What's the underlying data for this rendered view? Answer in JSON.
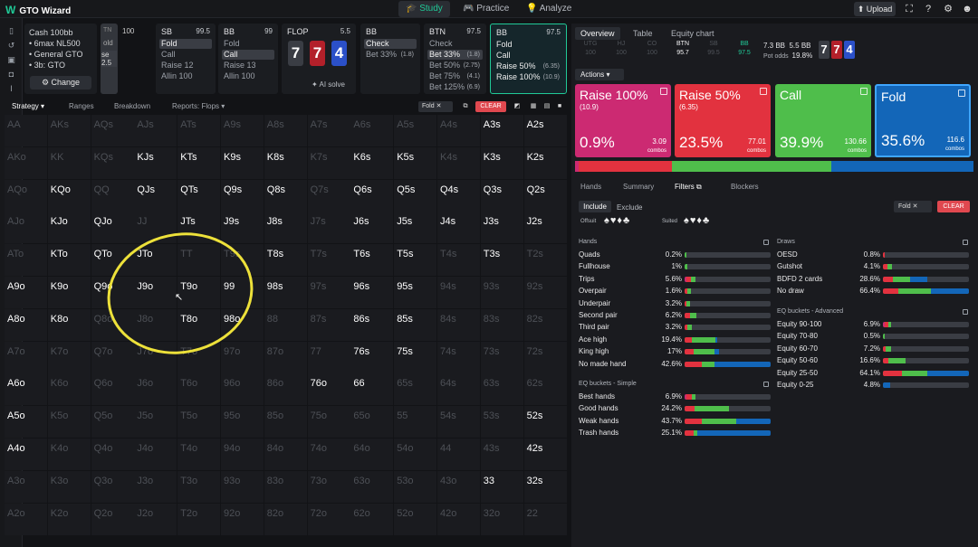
{
  "topbar": {
    "logo": "GTO Wizard",
    "nav": [
      "Study",
      "Practice",
      "Analyze"
    ],
    "upload": "Upload"
  },
  "config": {
    "line1": "Cash 100bb",
    "line2": "• 6max NL500",
    "line3": "• General GTO",
    "line4": "• 3b: GTO",
    "change": "Change"
  },
  "positions": [
    {
      "name": "SB",
      "stack": "99.5",
      "actions": [
        {
          "label": "Fold",
          "sel": true
        },
        {
          "label": "Call"
        },
        {
          "label": "Raise 12"
        },
        {
          "label": "Allin 100"
        }
      ]
    },
    {
      "name": "BB",
      "stack": "99",
      "actions": [
        {
          "label": "Fold"
        },
        {
          "label": "Call",
          "sel": true
        },
        {
          "label": "Raise 13"
        },
        {
          "label": "Allin 100"
        }
      ]
    },
    {
      "name": "FLOP",
      "stack": "5.5",
      "ai": "AI solve"
    },
    {
      "name": "BB",
      "stack": "",
      "actions": [
        {
          "label": "Check",
          "sel": true
        },
        {
          "label": "Bet 33%",
          "size": "(1.8)"
        }
      ]
    },
    {
      "name": "BTN",
      "stack": "97.5",
      "actions": [
        {
          "label": "Check"
        },
        {
          "label": "Bet 33%",
          "size": "(1.8)",
          "sel": true
        },
        {
          "label": "Bet 50%",
          "size": "(2.75)"
        },
        {
          "label": "Bet 75%",
          "size": "(4.1)"
        },
        {
          "label": "Bet 125%",
          "size": "(6.9)"
        }
      ]
    },
    {
      "name": "BB",
      "stack": "97.5",
      "actions": [
        {
          "label": "Fold"
        },
        {
          "label": "Call"
        },
        {
          "label": "Raise 50%",
          "size": "(6.35)"
        },
        {
          "label": "Raise 100%",
          "size": "(10.9)"
        }
      ]
    }
  ],
  "hidden_panel": {
    "h1": "TN",
    "h2": "100",
    "a1": "old",
    "a2": "se 2.5"
  },
  "board": {
    "cards": [
      {
        "rank": "7",
        "color": "#3a3d44"
      },
      {
        "rank": "7",
        "color": "#b3202a"
      },
      {
        "rank": "4",
        "color": "#2b50c8"
      }
    ]
  },
  "grid_tabs": {
    "strategy": "Strategy",
    "ranges": "Ranges",
    "breakdown": "Breakdown",
    "reports": "Reports: Flops",
    "fold_chip": "Fold",
    "clear": "CLEAR"
  },
  "hand_grid": {
    "ranks": [
      "A",
      "K",
      "Q",
      "J",
      "T",
      "9",
      "8",
      "7",
      "6",
      "5",
      "4",
      "3",
      "2"
    ],
    "active_cells": {
      "AA": 0,
      "KK": 0
    },
    "bars": {
      "A3s": 0.2,
      "A2s": 0.2,
      "K3s": 0.45,
      "K2s": 0.6,
      "Q3s": 0.85,
      "Q2s": 0.95,
      "J3s": 0.9,
      "J2s": 0.95,
      "T3s": 0.3,
      "QJo": 0.65,
      "KTo": 0.3,
      "QTo": 0.3,
      "JTo": 0.75,
      "T9s": 0.1,
      "T8s": 0.1,
      "K9o": 0.6,
      "Q9o": 0.6,
      "J9o": 0.6,
      "T9o": 0.75,
      "99": 0.1,
      "K8o": 0.35,
      "Q8o": 0.1,
      "T8o": 0.3,
      "98o": 0.3,
      "Q8s": 0.15,
      "K8s": 0.2,
      "K9s": 0.05,
      "Q9s": 0.05,
      "QTs": 0.1,
      "Q6s": 0.15,
      "Q5s": 0.15,
      "T6s": 0.2,
      "T5s": 0.45,
      "96s": 0.1,
      "95s": 0.1,
      "86s": 0.1,
      "85s": 0.3,
      "Q4s": 0.05,
      "52s": 0.95,
      "32s": 0.2,
      "K5s": 0.05,
      "K6s": 0.05
    },
    "active_labels": [
      "KJs",
      "KTs",
      "K9s",
      "K8s",
      "K6s",
      "K5s",
      "A3s",
      "A2s",
      "KQo",
      "QJs",
      "QTs",
      "Q9s",
      "Q8s",
      "Q6s",
      "Q5s",
      "Q4s",
      "K3s",
      "K2s",
      "Q3s",
      "Q2s",
      "KJo",
      "QJo",
      "JTs",
      "J9s",
      "J8s",
      "J6s",
      "J5s",
      "J4s",
      "J3s",
      "J2s",
      "KTo",
      "QTo",
      "JTo",
      "T8s",
      "T6s",
      "T5s",
      "T3s",
      "A9o",
      "K9o",
      "Q9o",
      "J9o",
      "T9o",
      "99",
      "98s",
      "96s",
      "95s",
      "A8o",
      "K8o",
      "T8o",
      "98o",
      "86s",
      "85s",
      "76s",
      "75s",
      "A6o",
      "76o",
      "66",
      "A5o",
      "52s",
      "A4o",
      "42s",
      "33",
      "32s"
    ]
  },
  "right_panel": {
    "tabs": [
      "Overview",
      "Table",
      "Equity chart"
    ],
    "mini_positions": [
      {
        "name": "UTG",
        "stack": "100",
        "state": "dim"
      },
      {
        "name": "HJ",
        "stack": "100",
        "state": "dim"
      },
      {
        "name": "CO",
        "stack": "100",
        "state": "dim"
      },
      {
        "name": "BTN",
        "stack": "95.7",
        "state": "on"
      },
      {
        "name": "SB",
        "stack": "99.5",
        "state": "dim"
      },
      {
        "name": "BB",
        "stack": "97.5",
        "state": "bb"
      }
    ],
    "pot": "7.3 BB",
    "bet": "5.5 BB",
    "pot_odds_label": "Pot odds",
    "pot_odds": "19.8%",
    "actions_dd": "Actions",
    "actions": [
      {
        "title": "Raise 100%",
        "size": "(10.9)",
        "pct": "0.9%",
        "combos": "3.09",
        "color": "#cc2a72"
      },
      {
        "title": "Raise 50%",
        "size": "(6.35)",
        "pct": "23.5%",
        "combos": "77.01",
        "color": "#e2323f"
      },
      {
        "title": "Call",
        "size": "",
        "pct": "39.9%",
        "combos": "130.66",
        "color": "#4fbe4b"
      },
      {
        "title": "Fold",
        "size": "",
        "pct": "35.6%",
        "combos": "116.6",
        "color": "#1366b8"
      }
    ],
    "combos_label": "combos",
    "subtabs": [
      "Hands",
      "Summary",
      "Filters",
      "Blockers"
    ],
    "include": "Include",
    "exclude": "Exclude",
    "fold_chip": "Fold",
    "clear": "CLEAR",
    "offsuit_label": "Offsuit",
    "suited_label": "Suited",
    "offsuit_suits": "♠♥♦♣",
    "suited_suits": "♠♥♦♣",
    "hands_title": "Hands",
    "hands": [
      {
        "label": "Quads",
        "pct": "0.2%",
        "mix": [
          0,
          0,
          0.02,
          0
        ]
      },
      {
        "label": "Fullhouse",
        "pct": "1%",
        "mix": [
          0,
          0,
          0.03,
          0
        ]
      },
      {
        "label": "Trips",
        "pct": "5.6%",
        "mix": [
          0.02,
          0.05,
          0.06,
          0
        ]
      },
      {
        "label": "Overpair",
        "pct": "1.6%",
        "mix": [
          0,
          0.03,
          0.04,
          0
        ]
      },
      {
        "label": "Underpair",
        "pct": "3.2%",
        "mix": [
          0,
          0.02,
          0.04,
          0
        ]
      },
      {
        "label": "Second pair",
        "pct": "6.2%",
        "mix": [
          0,
          0.06,
          0.08,
          0
        ]
      },
      {
        "label": "Third pair",
        "pct": "3.2%",
        "mix": [
          0,
          0.03,
          0.05,
          0
        ]
      },
      {
        "label": "Ace high",
        "pct": "19.4%",
        "mix": [
          0,
          0.08,
          0.28,
          0.02
        ]
      },
      {
        "label": "King high",
        "pct": "17%",
        "mix": [
          0,
          0.1,
          0.25,
          0.05
        ]
      },
      {
        "label": "No made hand",
        "pct": "42.6%",
        "mix": [
          0,
          0.2,
          0.15,
          0.65
        ]
      }
    ],
    "eq_simple_title": "EQ buckets - Simple",
    "eq_simple": [
      {
        "label": "Best hands",
        "pct": "6.9%",
        "mix": [
          0.02,
          0.06,
          0.05,
          0
        ]
      },
      {
        "label": "Good hands",
        "pct": "24.2%",
        "mix": [
          0,
          0.12,
          0.4,
          0
        ]
      },
      {
        "label": "Weak hands",
        "pct": "43.7%",
        "mix": [
          0,
          0.2,
          0.4,
          0.4
        ]
      },
      {
        "label": "Trash hands",
        "pct": "25.1%",
        "mix": [
          0,
          0.1,
          0.05,
          0.85
        ]
      }
    ],
    "draws_title": "Draws",
    "draws": [
      {
        "label": "OESD",
        "pct": "0.8%",
        "mix": [
          0,
          0.02,
          0,
          0
        ]
      },
      {
        "label": "Gutshot",
        "pct": "4.1%",
        "mix": [
          0,
          0.05,
          0.06,
          0
        ]
      },
      {
        "label": "BDFD 2 cards",
        "pct": "28.6%",
        "mix": [
          0,
          0.12,
          0.2,
          0.2
        ]
      },
      {
        "label": "No draw",
        "pct": "66.4%",
        "mix": [
          0,
          0.18,
          0.38,
          0.44
        ]
      }
    ],
    "eq_adv_title": "EQ buckets - Advanced",
    "eq_adv": [
      {
        "label": "Equity 90-100",
        "pct": "6.9%",
        "mix": [
          0.02,
          0.04,
          0.03,
          0
        ]
      },
      {
        "label": "Equity 70-80",
        "pct": "0.5%",
        "mix": [
          0,
          0,
          0.02,
          0
        ]
      },
      {
        "label": "Equity 60-70",
        "pct": "7.2%",
        "mix": [
          0,
          0.03,
          0.06,
          0
        ]
      },
      {
        "label": "Equity 50-60",
        "pct": "16.6%",
        "mix": [
          0,
          0.06,
          0.2,
          0
        ]
      },
      {
        "label": "Equity 25-50",
        "pct": "64.1%",
        "mix": [
          0,
          0.22,
          0.3,
          0.48
        ]
      },
      {
        "label": "Equity 0-25",
        "pct": "4.8%",
        "mix": [
          0,
          0,
          0,
          0.08
        ]
      }
    ]
  }
}
